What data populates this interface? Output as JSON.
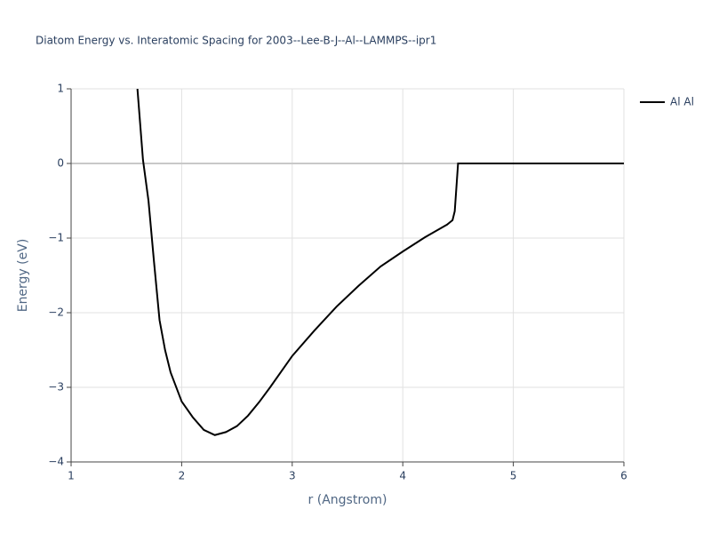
{
  "chart_data": {
    "type": "line",
    "title": "Diatom Energy vs. Interatomic Spacing for 2003--Lee-B-J--Al--LAMMPS--ipr1",
    "x_label": "r (Angstrom)",
    "y_label": "Energy (eV)",
    "xlim": [
      1,
      6
    ],
    "ylim": [
      -4,
      1
    ],
    "xticks": [
      1,
      2,
      3,
      4,
      5,
      6
    ],
    "yticks": [
      {
        "value": 1,
        "label": "1"
      },
      {
        "value": 0,
        "label": "0"
      },
      {
        "value": -1,
        "label": "−1"
      },
      {
        "value": -2,
        "label": "−2"
      },
      {
        "value": -3,
        "label": "−3"
      },
      {
        "value": -4,
        "label": "−4"
      }
    ],
    "grid": true,
    "legend": "top-right",
    "series": [
      {
        "name": "Al Al",
        "color": "#000000",
        "x": [
          1.6,
          1.65,
          1.7,
          1.75,
          1.8,
          1.85,
          1.9,
          2.0,
          2.1,
          2.2,
          2.3,
          2.4,
          2.5,
          2.6,
          2.7,
          2.8,
          3.0,
          3.2,
          3.4,
          3.6,
          3.8,
          4.0,
          4.2,
          4.4,
          4.45,
          4.47,
          4.5,
          5.0,
          5.5,
          6.0
        ],
        "values": [
          1.0,
          0.05,
          -0.5,
          -1.32,
          -2.1,
          -2.5,
          -2.8,
          -3.19,
          -3.4,
          -3.57,
          -3.64,
          -3.6,
          -3.52,
          -3.38,
          -3.2,
          -3.0,
          -2.58,
          -2.24,
          -1.92,
          -1.64,
          -1.38,
          -1.18,
          -0.99,
          -0.82,
          -0.76,
          -0.64,
          0,
          0,
          0,
          0
        ]
      }
    ]
  }
}
